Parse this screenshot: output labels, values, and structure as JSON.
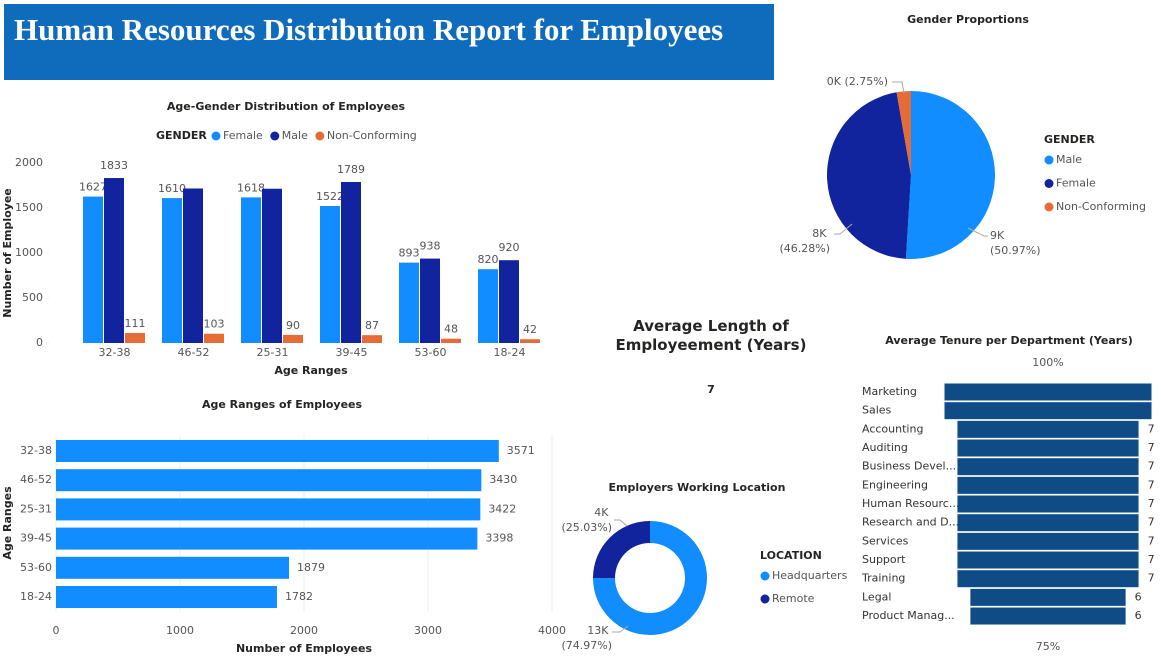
{
  "title": "Human Resources Distribution Report for Employees",
  "chart_data": [
    {
      "type": "bar",
      "title": "Age-Gender Distribution of Employees",
      "legend_title": "GENDER",
      "categories": [
        "32-38",
        "46-52",
        "25-31",
        "39-45",
        "53-60",
        "18-24"
      ],
      "series": [
        {
          "name": "Female",
          "color": "#118dff",
          "values": [
            1627,
            1610,
            1618,
            1522,
            893,
            820
          ]
        },
        {
          "name": "Male",
          "color": "#12239e",
          "values": [
            1833,
            1717,
            1714,
            1789,
            938,
            920
          ],
          "value_labels": [
            "1833",
            null,
            null,
            "1789",
            "938",
            "920"
          ]
        },
        {
          "name": "Non-Conforming",
          "color": "#e66c37",
          "values": [
            111,
            103,
            90,
            87,
            48,
            42
          ]
        }
      ],
      "x_label": "Age Ranges",
      "y_label": "Number of Employee",
      "ylim": [
        0,
        2000
      ],
      "yticks": [
        0,
        500,
        1000,
        1500,
        2000
      ]
    },
    {
      "type": "hbar",
      "title": "Age Ranges of Employees",
      "categories": [
        "32-38",
        "46-52",
        "25-31",
        "39-45",
        "53-60",
        "18-24"
      ],
      "values": [
        3571,
        3430,
        3422,
        3398,
        1879,
        1782
      ],
      "color": "#118dff",
      "x_label": "Number of Employees",
      "y_label": "Age Ranges",
      "xlim": [
        0,
        4000
      ],
      "xticks": [
        0,
        1000,
        2000,
        3000,
        4000
      ],
      "grid": true
    },
    {
      "type": "pie",
      "title": "Gender Proportions",
      "legend_title": "GENDER",
      "categories": [
        "Male",
        "Female",
        "Non-Conforming"
      ],
      "values": [
        50.97,
        46.28,
        2.75
      ],
      "value_labels": [
        "9K (50.97%)",
        "8K (46.28%)",
        "0K (2.75%)"
      ],
      "colors": [
        "#118dff",
        "#12239e",
        "#e66c37"
      ]
    },
    {
      "type": "card",
      "title": "Average Length of Employeement (Years)",
      "value": 7
    },
    {
      "type": "donut",
      "title": "Employers Working Location",
      "legend_title": "LOCATION",
      "categories": [
        "Headquarters",
        "Remote"
      ],
      "values": [
        74.97,
        25.03
      ],
      "value_labels": [
        "13K (74.97%)",
        "4K (25.03%)"
      ],
      "colors": [
        "#118dff",
        "#12239e"
      ]
    },
    {
      "type": "funnel",
      "title": "Average Tenure per Department (Years)",
      "categories": [
        "Marketing",
        "Sales",
        "Accounting",
        "Auditing",
        "Business Devel...",
        "Engineering",
        "Human Resourc...",
        "Research and D...",
        "Services",
        "Support",
        "Training",
        "Legal",
        "Product Manag..."
      ],
      "values": [
        8,
        8,
        7,
        7,
        7,
        7,
        7,
        7,
        7,
        7,
        7,
        6,
        6
      ],
      "color": "#0f4c85",
      "top_label": "100%",
      "bottom_label": "75%"
    }
  ]
}
